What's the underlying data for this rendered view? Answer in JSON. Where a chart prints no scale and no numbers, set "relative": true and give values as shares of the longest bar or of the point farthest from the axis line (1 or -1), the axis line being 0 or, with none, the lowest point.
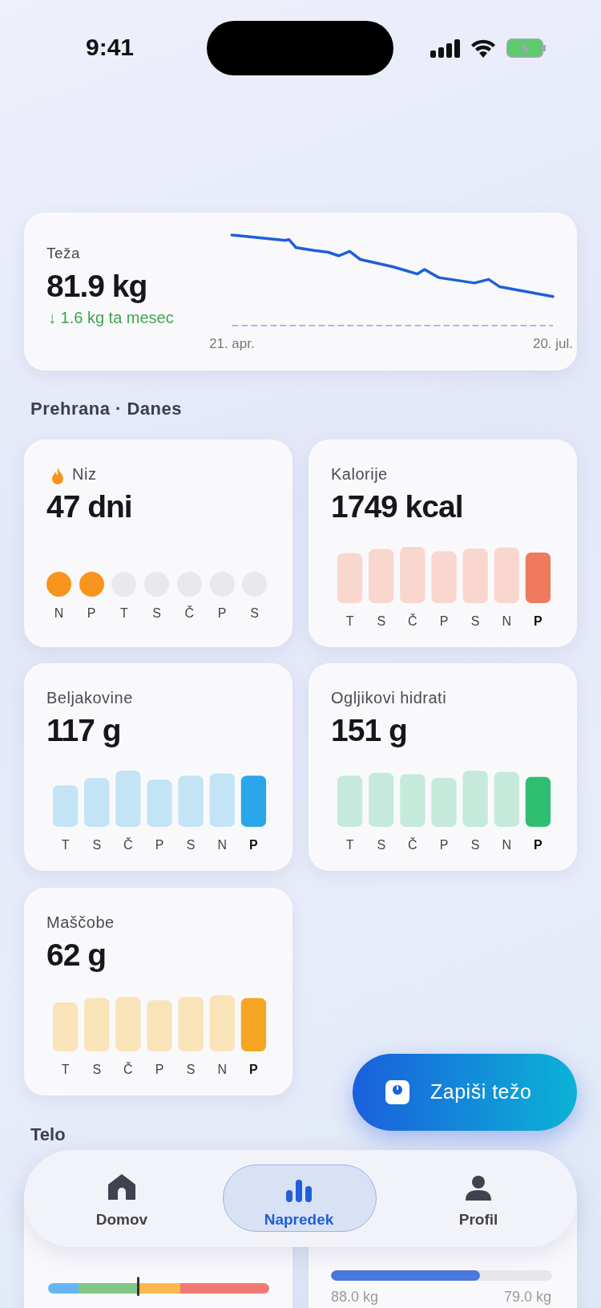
{
  "chart_data": [
    {
      "type": "other",
      "title": "Teža",
      "subtitle": "81.9 kg",
      "annotations": [
        "↓ 1.6 kg ta mesec"
      ]
    },
    {
      "type": "line",
      "relative": true,
      "color": "#1f5fd6",
      "x": [
        "--04-21",
        "--05-06",
        "--05-07",
        "--05-09",
        "--05-14",
        "--05-18",
        "--05-21",
        "--05-24",
        "--05-27",
        "--06-05",
        "--06-12",
        "--06-14",
        "--06-18",
        "--06-28",
        "--07-02",
        "--07-05",
        "--07-20"
      ],
      "values": [
        1,
        0.94,
        0.95,
        0.86,
        0.83,
        0.81,
        0.77,
        0.82,
        0.73,
        0.65,
        0.57,
        0.62,
        0.53,
        0.47,
        0.51,
        0.43,
        0.32
      ],
      "xlim": [
        "--04-21",
        "--07-20"
      ],
      "xticks": [
        {
          "value": "--04-21",
          "label": "21. apr."
        },
        {
          "value": "--07-20",
          "label": "20. jul."
        }
      ],
      "ref_lines": [
        {
          "axis": "y",
          "value": 0,
          "color": "#a9b8ec",
          "line_style": "dashed"
        }
      ]
    },
    {
      "type": "other",
      "title": "Niz",
      "subtitle": "47 dni",
      "categories": [
        "N",
        "P",
        "T",
        "S",
        "Č",
        "P",
        "S"
      ]
    },
    {
      "type": "bar",
      "title": "Kalorije",
      "subtitle": "1749 kcal",
      "relative": true,
      "categories": [
        "T",
        "S",
        "Č",
        "P",
        "S",
        "N",
        "P"
      ],
      "values": [
        0.89,
        0.96,
        1,
        0.92,
        0.97,
        0.99,
        0.9
      ],
      "colors": [
        "#f9d7ce",
        "#f9d7ce",
        "#f9d7ce",
        "#f9d7ce",
        "#f9d7ce",
        "#f9d7ce",
        "#ef7a5e"
      ]
    },
    {
      "type": "bar",
      "title": "Beljakovine",
      "subtitle": "117 g",
      "relative": true,
      "categories": [
        "T",
        "S",
        "Č",
        "P",
        "S",
        "N",
        "P"
      ],
      "values": [
        0.74,
        0.87,
        1,
        0.84,
        0.91,
        0.95,
        0.91
      ],
      "colors": [
        "#c2e4f5",
        "#c2e4f5",
        "#c2e4f5",
        "#c2e4f5",
        "#c2e4f5",
        "#c2e4f5",
        "#2aa7ea"
      ]
    },
    {
      "type": "bar",
      "title": "Ogljikovi hidrati",
      "subtitle": "151 g",
      "relative": true,
      "categories": [
        "T",
        "S",
        "Č",
        "P",
        "S",
        "N",
        "P"
      ],
      "values": [
        0.91,
        0.96,
        0.94,
        0.87,
        1,
        0.98,
        0.89
      ],
      "colors": [
        "#c5eadb",
        "#c5eadb",
        "#c5eadb",
        "#c5eadb",
        "#c5eadb",
        "#c5eadb",
        "#2fbf71"
      ]
    },
    {
      "type": "bar",
      "title": "Maščobe",
      "subtitle": "62 g",
      "relative": true,
      "categories": [
        "T",
        "S",
        "Č",
        "P",
        "S",
        "N",
        "P"
      ],
      "values": [
        0.87,
        0.95,
        0.97,
        0.91,
        0.97,
        1,
        0.95
      ],
      "colors": [
        "#f8e4b8",
        "#f8e4b8",
        "#f8e4b8",
        "#f8e4b8",
        "#f8e4b8",
        "#f8e4b8",
        "#f5a623"
      ]
    },
    {
      "type": "other",
      "annotations": [
        "9:41",
        "Prehrana · Danes",
        "Zapiši težo",
        "Telo",
        "Domov",
        "Napredek",
        "Profil",
        "88.0 kg",
        "79.0 kg"
      ]
    }
  ]
}
